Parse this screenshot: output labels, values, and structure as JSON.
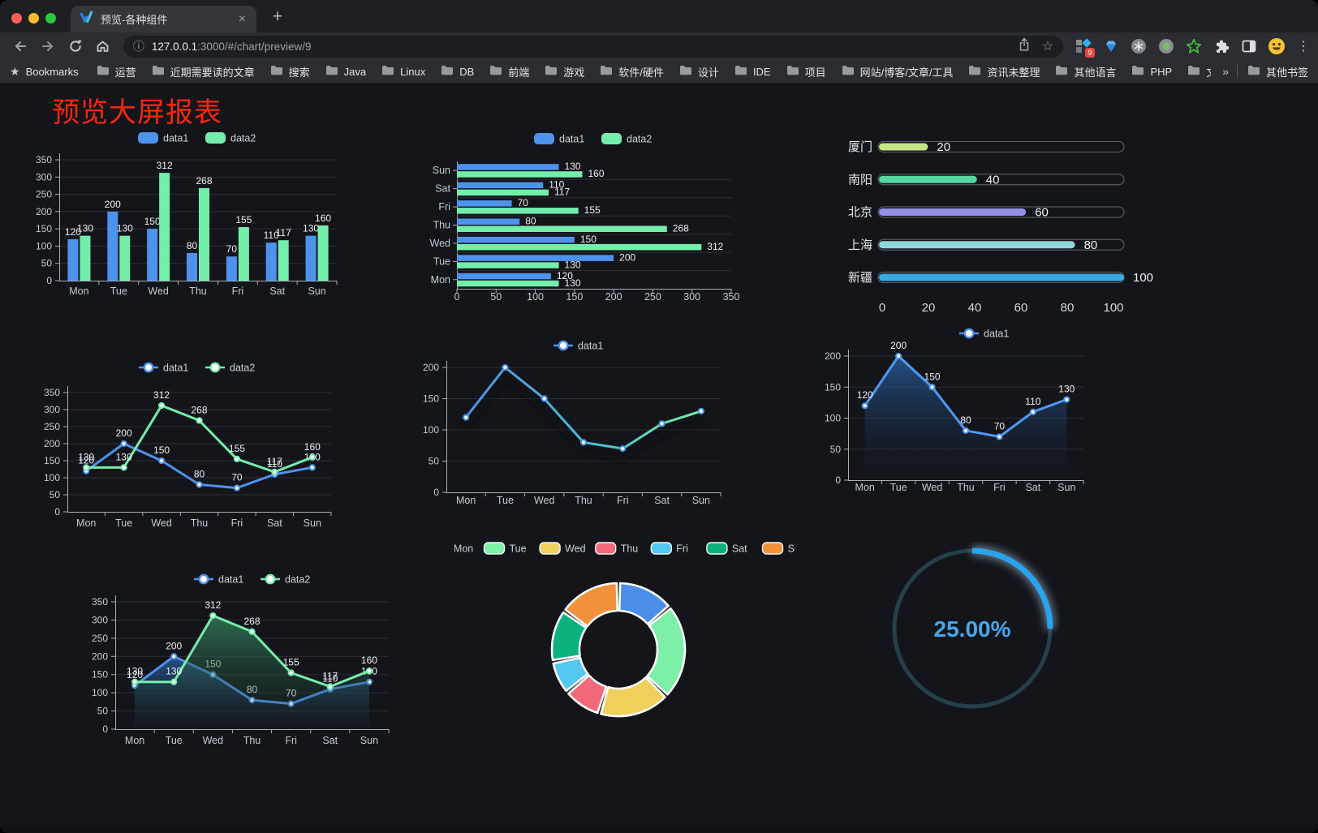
{
  "browser": {
    "tab_title": "预览-各种组件",
    "tab_close_glyph": "×",
    "new_tab_glyph": "+",
    "url_host": "127.0.0.1",
    "url_rest": ":3000/#/chart/preview/9",
    "bookmarks_label": "Bookmarks",
    "bookmarks": [
      "运营",
      "近期需要读的文章",
      "搜索",
      "Java",
      "Linux",
      "DB",
      "前端",
      "游戏",
      "软件/硬件",
      "设计",
      "IDE",
      "项目",
      "网站/博客/文章/工具",
      "资讯未整理",
      "其他语言",
      "PHP",
      "文件服务器"
    ],
    "overflow_chevron": "»",
    "other_bookmarks": "其他书签",
    "extension_badge": "9",
    "menu_glyph": "⋮"
  },
  "page": {
    "title": "预览大屏报表",
    "title_color": "#f5290d"
  },
  "chart_data": [
    {
      "id": "grouped-bar",
      "type": "bar",
      "categories": [
        "Mon",
        "Tue",
        "Wed",
        "Thu",
        "Fri",
        "Sat",
        "Sun"
      ],
      "series": [
        {
          "name": "data1",
          "color": "#4d93ee",
          "values": [
            120,
            200,
            150,
            80,
            70,
            110,
            130
          ]
        },
        {
          "name": "data2",
          "color": "#74eeab",
          "values": [
            130,
            130,
            312,
            268,
            155,
            117,
            160
          ]
        }
      ],
      "ylim": [
        0,
        350
      ],
      "ytick": 50,
      "legend_position": "top",
      "grid": true
    },
    {
      "id": "horizontal-bar",
      "type": "bar",
      "orientation": "horizontal",
      "categories": [
        "Mon",
        "Tue",
        "Wed",
        "Thu",
        "Fri",
        "Sat",
        "Sun"
      ],
      "series": [
        {
          "name": "data1",
          "color": "#4d93ee",
          "values": [
            120,
            200,
            150,
            80,
            70,
            110,
            130
          ]
        },
        {
          "name": "data2",
          "color": "#74eeab",
          "values": [
            130,
            130,
            312,
            268,
            155,
            117,
            160
          ]
        }
      ],
      "xlim": [
        0,
        350
      ],
      "xtick": 50,
      "legend_position": "top",
      "grid": true
    },
    {
      "id": "city-progress",
      "type": "bar",
      "subtype": "progress-list",
      "items": [
        {
          "label": "厦门",
          "value": 20,
          "color": "#c6e589"
        },
        {
          "label": "南阳",
          "value": 40,
          "color": "#56d7a2"
        },
        {
          "label": "北京",
          "value": 60,
          "color": "#918fe8"
        },
        {
          "label": "上海",
          "value": 80,
          "color": "#8ed6da"
        },
        {
          "label": "新疆",
          "value": 100,
          "color": "#38a9e2"
        }
      ],
      "xlim": [
        0,
        100
      ],
      "axis_ticks": [
        0,
        20,
        40,
        60,
        80,
        100
      ]
    },
    {
      "id": "line-two-series",
      "type": "line",
      "categories": [
        "Mon",
        "Tue",
        "Wed",
        "Thu",
        "Fri",
        "Sat",
        "Sun"
      ],
      "series": [
        {
          "name": "data1",
          "color": "#4d93ee",
          "values": [
            120,
            200,
            150,
            80,
            70,
            110,
            130
          ],
          "labels": true
        },
        {
          "name": "data2",
          "color": "#74eeab",
          "values": [
            130,
            130,
            312,
            268,
            155,
            117,
            160
          ],
          "labels": true
        }
      ],
      "ylim": [
        0,
        350
      ],
      "ytick": 50,
      "legend_position": "top",
      "grid": true
    },
    {
      "id": "gradient-line",
      "type": "line",
      "categories": [
        "Mon",
        "Tue",
        "Wed",
        "Thu",
        "Fri",
        "Sat",
        "Sun"
      ],
      "series": [
        {
          "name": "data1",
          "color": "#4d93ee",
          "marker_color": "#4d93ee",
          "gradient": [
            "#4d93ee",
            "#49bfca",
            "#74eda9"
          ],
          "shadow": true,
          "values": [
            120,
            200,
            150,
            80,
            70,
            110,
            130
          ],
          "labels": false
        }
      ],
      "ylim": [
        0,
        200
      ],
      "ytick": 50,
      "legend_position": "top",
      "grid": true
    },
    {
      "id": "area-single",
      "type": "area",
      "categories": [
        "Mon",
        "Tue",
        "Wed",
        "Thu",
        "Fri",
        "Sat",
        "Sun"
      ],
      "series": [
        {
          "name": "data1",
          "color": "#4d9af2",
          "marker_color": "#4d93ee",
          "area": [
            "rgba(42,92,156,0.85)",
            "rgba(20,34,56,0)"
          ],
          "values": [
            120,
            200,
            150,
            80,
            70,
            110,
            130
          ],
          "labels": true
        }
      ],
      "ylim": [
        0,
        200
      ],
      "ytick": 50,
      "legend_position": "top",
      "grid": true
    },
    {
      "id": "area-two-series",
      "type": "area",
      "categories": [
        "Mon",
        "Tue",
        "Wed",
        "Thu",
        "Fri",
        "Sat",
        "Sun"
      ],
      "series": [
        {
          "name": "data1",
          "color": "#4d93ee",
          "area": [
            "rgba(48,100,170,0.75)",
            "rgba(22,42,72,0.04)"
          ],
          "values": [
            120,
            200,
            150,
            80,
            70,
            110,
            130
          ],
          "labels": true
        },
        {
          "name": "data2",
          "color": "#74eeab",
          "area": [
            "rgba(52,128,92,0.8)",
            "rgba(26,58,46,0.04)"
          ],
          "values": [
            130,
            130,
            312,
            268,
            155,
            117,
            160
          ],
          "labels": true
        }
      ],
      "ylim": [
        0,
        350
      ],
      "ytick": 50,
      "legend_position": "top",
      "grid": true
    },
    {
      "id": "weekday-donut",
      "type": "pie",
      "subtype": "donut",
      "categories": [
        "Mon",
        "Tue",
        "Wed",
        "Thu",
        "Fri",
        "Sat",
        "Sun"
      ],
      "values": [
        120,
        200,
        150,
        80,
        70,
        110,
        130
      ],
      "colors": [
        "#4a8eea",
        "#7df0a7",
        "#f0cf5c",
        "#f26a7a",
        "#54c7f2",
        "#0cb180",
        "#f2913c"
      ],
      "legend_position": "top"
    },
    {
      "id": "percent-gauge",
      "type": "gauge",
      "value": 25,
      "label": "25.00%",
      "color": "#2aa3ee",
      "track_color": "#254049",
      "text_color": "#46a7eb"
    }
  ]
}
